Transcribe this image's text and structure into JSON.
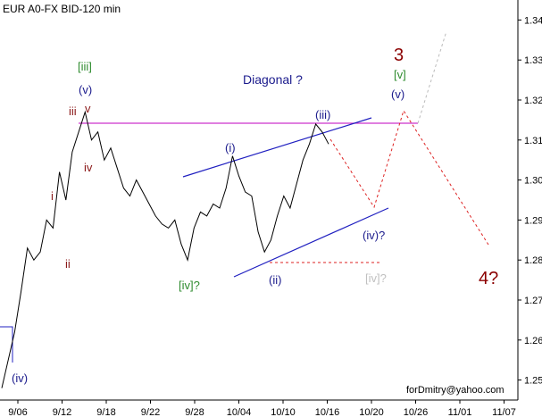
{
  "chart_data": {
    "type": "line",
    "title": "EUR A0-FX BID-120 min",
    "watermark": "forDmitry@yahoo.com",
    "x_tick_labels": [
      "9/06",
      "9/12",
      "9/18",
      "9/22",
      "9/28",
      "10/04",
      "10/10",
      "10/16",
      "10/20",
      "10/26",
      "11/01",
      "11/07"
    ],
    "y_tick_labels": [
      "1.25",
      "1.26",
      "1.27",
      "1.28",
      "1.29",
      "1.30",
      "1.31",
      "1.32",
      "1.33",
      "1.34"
    ],
    "ylim": [
      1.245,
      1.345
    ],
    "grid": false,
    "series": [
      {
        "values": [
          1.248,
          1.255,
          1.262,
          1.272,
          1.283,
          1.28,
          1.282,
          1.29,
          1.288,
          1.302,
          1.295,
          1.307,
          1.312,
          1.317,
          1.31,
          1.312,
          1.305,
          1.308,
          1.303,
          1.298,
          1.296,
          1.3,
          1.297,
          1.294,
          1.291,
          1.289,
          1.288,
          1.29,
          1.284,
          1.28,
          1.288,
          1.292,
          1.291,
          1.294,
          1.293,
          1.298,
          1.306,
          1.301,
          1.297,
          1.296,
          1.287,
          1.282,
          1.285,
          1.291,
          1.296,
          1.293,
          1.299,
          1.305,
          1.309,
          1.314,
          1.312,
          1.309
        ],
        "color": "#000000"
      }
    ],
    "annotations": [
      {
        "text": "(iv)",
        "color": "#1a1a8c"
      },
      {
        "text": "i",
        "color": "#8b1a1a"
      },
      {
        "text": "ii",
        "color": "#8b1a1a"
      },
      {
        "text": "iii",
        "color": "#8b1a1a"
      },
      {
        "text": "iv",
        "color": "#8b1a1a"
      },
      {
        "text": "v",
        "color": "#8b1a1a"
      },
      {
        "text": "(v)",
        "color": "#1a1a8c"
      },
      {
        "text": "[iii]",
        "color": "#2e8b2e"
      },
      {
        "text": "[iv]?",
        "color": "#2e8b2e"
      },
      {
        "text": "(i)",
        "color": "#1a1a8c"
      },
      {
        "text": "(ii)",
        "color": "#1a1a8c"
      },
      {
        "text": "(iii)",
        "color": "#1a1a8c"
      },
      {
        "text": "(iv)?",
        "color": "#1a1a8c"
      },
      {
        "text": "[iv]?",
        "color": "#c0c0c0"
      },
      {
        "text": "(v)",
        "color": "#1a1a8c"
      },
      {
        "text": "[v]",
        "color": "#2e8b2e"
      },
      {
        "text": "3",
        "color": "#8b0000"
      },
      {
        "text": "4?",
        "color": "#8b0000"
      },
      {
        "text": "Diagonal ?",
        "color": "#1a1a8c"
      }
    ],
    "colors": {
      "price": "#000000",
      "channel": "#2020c0",
      "resistance": "#cc33cc",
      "projection": "#dd2222",
      "alt_projection": "#bbbbbb",
      "axis": "#000000"
    }
  }
}
